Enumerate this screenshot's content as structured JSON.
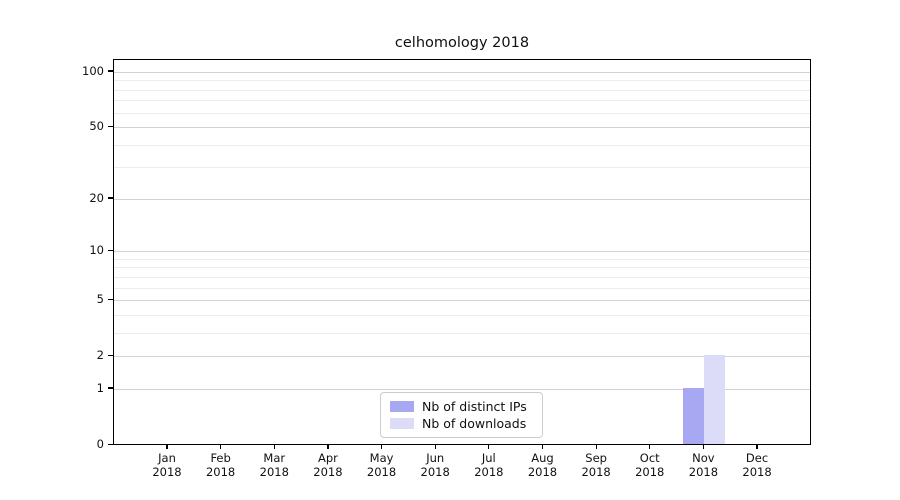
{
  "figure": {
    "background": "#ffffff"
  },
  "chart_data": {
    "type": "bar",
    "title": "celhomology 2018",
    "xlabel": "",
    "ylabel": "",
    "categories": [
      "Jan",
      "Feb",
      "Mar",
      "Apr",
      "May",
      "Jun",
      "Jul",
      "Aug",
      "Sep",
      "Oct",
      "Nov",
      "Dec"
    ],
    "category_year": "2018",
    "series": [
      {
        "name": "Nb of distinct IPs",
        "color": "#a8a8f2",
        "values": [
          0,
          0,
          0,
          0,
          0,
          0,
          0,
          0,
          0,
          0,
          1,
          0
        ]
      },
      {
        "name": "Nb of downloads",
        "color": "#dcdcf8",
        "values": [
          0,
          0,
          0,
          0,
          0,
          0,
          0,
          0,
          0,
          0,
          2,
          0
        ]
      }
    ],
    "y_scale": "log1p",
    "ylim": [
      0,
      116
    ],
    "y_ticks": [
      {
        "value": 0,
        "label": "0"
      },
      {
        "value": 1,
        "label": "1"
      },
      {
        "value": 2,
        "label": "2"
      },
      {
        "value": 5,
        "label": "5"
      },
      {
        "value": 10,
        "label": "10"
      },
      {
        "value": 20,
        "label": "20"
      },
      {
        "value": 50,
        "label": "50"
      },
      {
        "value": 100,
        "label": "100"
      }
    ],
    "y_major_gridlines": [
      1,
      2,
      5,
      10,
      20,
      50,
      100
    ],
    "y_minor_gridlines": [
      3,
      4,
      6,
      7,
      8,
      9,
      30,
      40,
      60,
      70,
      80,
      90
    ],
    "grid": true,
    "legend_position": "lower center"
  },
  "colors": {
    "spine": "#000000",
    "major_grid": "#d2d2d2",
    "minor_grid": "#ececec",
    "text": "#111111",
    "legend_border": "#cccccc",
    "legend_background": "#ffffff"
  }
}
